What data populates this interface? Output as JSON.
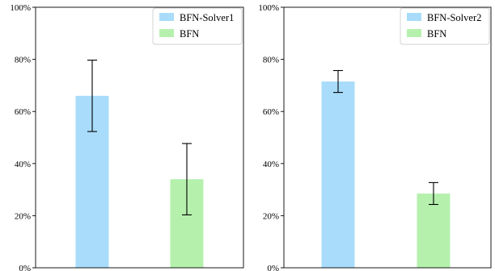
{
  "chart_data": [
    {
      "type": "bar",
      "categories": [
        "BFN-Solver1",
        "BFN"
      ],
      "values": [
        66,
        34
      ],
      "errors": [
        13.7,
        13.7
      ],
      "colors": [
        "#a8dcfa",
        "#b5f1ad"
      ],
      "ylim": [
        0,
        100
      ],
      "yticks": [
        "0%",
        "20%",
        "40%",
        "60%",
        "80%",
        "100%"
      ],
      "xlabel": "",
      "ylabel": "",
      "title": "",
      "grid": false,
      "legend": {
        "placement": "top-right",
        "entries": [
          "BFN-Solver1",
          "BFN"
        ]
      }
    },
    {
      "type": "bar",
      "categories": [
        "BFN-Solver2",
        "BFN"
      ],
      "values": [
        71.5,
        28.5
      ],
      "errors": [
        4.2,
        4.2
      ],
      "colors": [
        "#a8dcfa",
        "#b5f1ad"
      ],
      "ylim": [
        0,
        100
      ],
      "yticks": [
        "0%",
        "20%",
        "40%",
        "60%",
        "80%",
        "100%"
      ],
      "xlabel": "",
      "ylabel": "",
      "title": "",
      "grid": false,
      "legend": {
        "placement": "top-right",
        "entries": [
          "BFN-Solver2",
          "BFN"
        ]
      }
    }
  ]
}
